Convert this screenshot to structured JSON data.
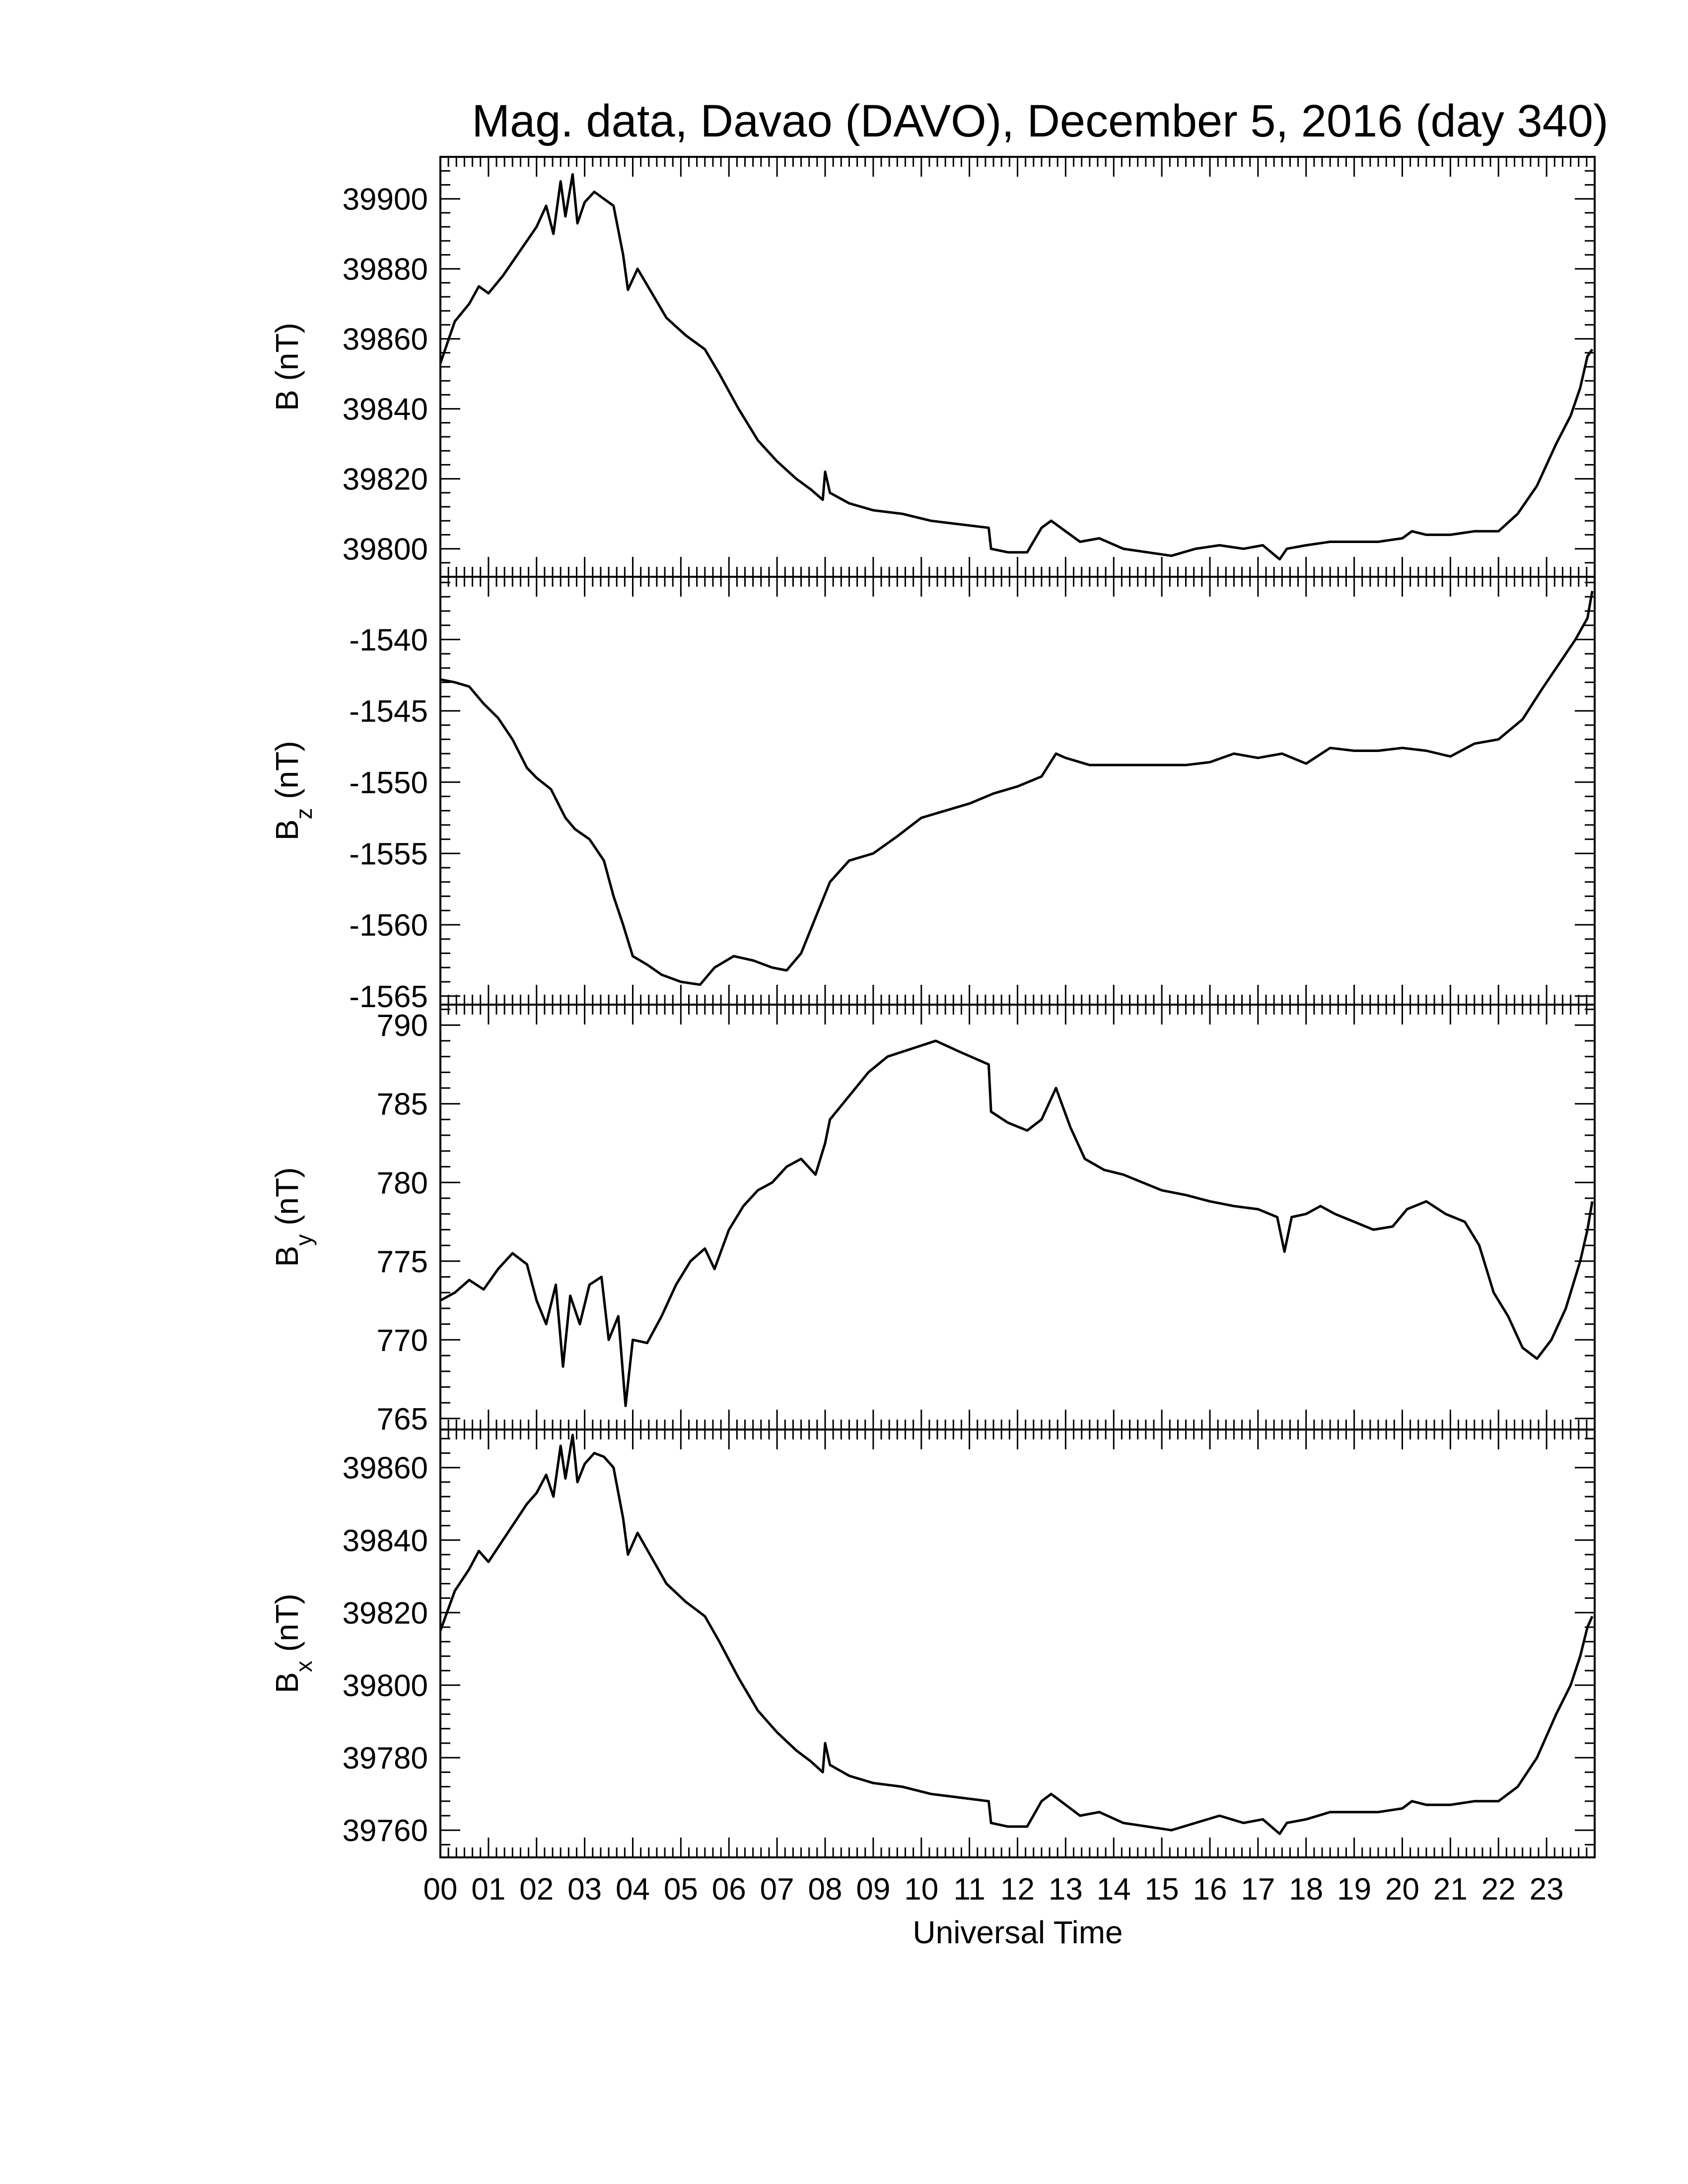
{
  "title": "Mag. data, Davao (DAVO), December 5, 2016 (day 340)",
  "line_color": "#000000",
  "xaxis": {
    "label": "Universal Time",
    "ticks": [
      "00",
      "01",
      "02",
      "03",
      "04",
      "05",
      "06",
      "07",
      "08",
      "09",
      "10",
      "11",
      "12",
      "13",
      "14",
      "15",
      "16",
      "17",
      "18",
      "19",
      "20",
      "21",
      "22",
      "23"
    ],
    "range": [
      0,
      24
    ],
    "unit": "hours"
  },
  "chart_data": [
    {
      "type": "line",
      "id": "B",
      "ylabel": "B (nT)",
      "ylabel_main": "B",
      "ylabel_sub": "",
      "ylabel_unit": "(nT)",
      "ylim": [
        39792,
        39912
      ],
      "yticks": [
        39800,
        39820,
        39840,
        39860,
        39880,
        39900
      ],
      "points": [
        [
          0,
          39853
        ],
        [
          0.3,
          39865
        ],
        [
          0.6,
          39870
        ],
        [
          0.8,
          39875
        ],
        [
          1.0,
          39873
        ],
        [
          1.3,
          39878
        ],
        [
          1.6,
          39884
        ],
        [
          1.8,
          39888
        ],
        [
          2.0,
          39892
        ],
        [
          2.2,
          39898
        ],
        [
          2.35,
          39890
        ],
        [
          2.5,
          39905
        ],
        [
          2.6,
          39895
        ],
        [
          2.75,
          39907
        ],
        [
          2.85,
          39893
        ],
        [
          3.0,
          39899
        ],
        [
          3.2,
          39902
        ],
        [
          3.4,
          39900
        ],
        [
          3.6,
          39898
        ],
        [
          3.8,
          39884
        ],
        [
          3.9,
          39874
        ],
        [
          4.1,
          39880
        ],
        [
          4.4,
          39873
        ],
        [
          4.7,
          39866
        ],
        [
          5.1,
          39861
        ],
        [
          5.5,
          39857
        ],
        [
          5.8,
          39850
        ],
        [
          6.2,
          39840
        ],
        [
          6.6,
          39831
        ],
        [
          7.0,
          39825
        ],
        [
          7.4,
          39820
        ],
        [
          7.7,
          39817
        ],
        [
          7.95,
          39814
        ],
        [
          8.0,
          39822
        ],
        [
          8.1,
          39816
        ],
        [
          8.5,
          39813
        ],
        [
          9.0,
          39811
        ],
        [
          9.6,
          39810
        ],
        [
          10.2,
          39808
        ],
        [
          10.8,
          39807
        ],
        [
          11.4,
          39806
        ],
        [
          11.45,
          39800
        ],
        [
          11.8,
          39799
        ],
        [
          12.2,
          39799
        ],
        [
          12.5,
          39806
        ],
        [
          12.7,
          39808
        ],
        [
          12.9,
          39806
        ],
        [
          13.3,
          39802
        ],
        [
          13.7,
          39803
        ],
        [
          14.2,
          39800
        ],
        [
          14.7,
          39799
        ],
        [
          15.2,
          39798
        ],
        [
          15.7,
          39800
        ],
        [
          16.2,
          39801
        ],
        [
          16.7,
          39800
        ],
        [
          17.1,
          39801
        ],
        [
          17.45,
          39797
        ],
        [
          17.6,
          39800
        ],
        [
          18.0,
          39801
        ],
        [
          18.5,
          39802
        ],
        [
          19.0,
          39802
        ],
        [
          19.5,
          39802
        ],
        [
          20.0,
          39803
        ],
        [
          20.2,
          39805
        ],
        [
          20.5,
          39804
        ],
        [
          21.0,
          39804
        ],
        [
          21.5,
          39805
        ],
        [
          22.0,
          39805
        ],
        [
          22.4,
          39810
        ],
        [
          22.8,
          39818
        ],
        [
          23.2,
          39830
        ],
        [
          23.5,
          39838
        ],
        [
          23.7,
          39846
        ],
        [
          23.85,
          39855
        ],
        [
          23.95,
          39857
        ]
      ]
    },
    {
      "type": "line",
      "id": "Bz",
      "ylabel": "Bz (nT)",
      "ylabel_main": "B",
      "ylabel_sub": "z",
      "ylabel_unit": "(nT)",
      "ylim": [
        -1565.6,
        -1535.6
      ],
      "yticks": [
        -1540,
        -1545,
        -1550,
        -1555,
        -1560,
        -1565
      ],
      "points": [
        [
          0,
          -1542.8
        ],
        [
          0.3,
          -1543.0
        ],
        [
          0.6,
          -1543.3
        ],
        [
          0.9,
          -1544.5
        ],
        [
          1.2,
          -1545.5
        ],
        [
          1.5,
          -1547.0
        ],
        [
          1.8,
          -1549.0
        ],
        [
          2.0,
          -1549.7
        ],
        [
          2.3,
          -1550.5
        ],
        [
          2.6,
          -1552.5
        ],
        [
          2.8,
          -1553.3
        ],
        [
          3.1,
          -1554.0
        ],
        [
          3.4,
          -1555.5
        ],
        [
          3.6,
          -1558.0
        ],
        [
          3.8,
          -1560.0
        ],
        [
          4.0,
          -1562.2
        ],
        [
          4.3,
          -1562.8
        ],
        [
          4.6,
          -1563.5
        ],
        [
          5.0,
          -1564.0
        ],
        [
          5.4,
          -1564.2
        ],
        [
          5.7,
          -1563.0
        ],
        [
          6.1,
          -1562.2
        ],
        [
          6.5,
          -1562.5
        ],
        [
          6.9,
          -1563.0
        ],
        [
          7.2,
          -1563.2
        ],
        [
          7.5,
          -1562.0
        ],
        [
          7.8,
          -1559.5
        ],
        [
          8.1,
          -1557.0
        ],
        [
          8.5,
          -1555.5
        ],
        [
          9.0,
          -1555.0
        ],
        [
          9.5,
          -1553.8
        ],
        [
          10.0,
          -1552.5
        ],
        [
          10.5,
          -1552.0
        ],
        [
          11.0,
          -1551.5
        ],
        [
          11.5,
          -1550.8
        ],
        [
          12.0,
          -1550.3
        ],
        [
          12.5,
          -1549.6
        ],
        [
          12.8,
          -1548.0
        ],
        [
          13.0,
          -1548.3
        ],
        [
          13.5,
          -1548.8
        ],
        [
          14.5,
          -1548.8
        ],
        [
          15.5,
          -1548.8
        ],
        [
          16.0,
          -1548.6
        ],
        [
          16.5,
          -1548.0
        ],
        [
          17.0,
          -1548.3
        ],
        [
          17.5,
          -1548.0
        ],
        [
          18.0,
          -1548.7
        ],
        [
          18.5,
          -1547.6
        ],
        [
          19.0,
          -1547.8
        ],
        [
          19.5,
          -1547.8
        ],
        [
          20.0,
          -1547.6
        ],
        [
          20.5,
          -1547.8
        ],
        [
          21.0,
          -1548.2
        ],
        [
          21.5,
          -1547.3
        ],
        [
          22.0,
          -1547.0
        ],
        [
          22.5,
          -1545.6
        ],
        [
          22.9,
          -1543.5
        ],
        [
          23.3,
          -1541.5
        ],
        [
          23.6,
          -1540.0
        ],
        [
          23.85,
          -1538.5
        ],
        [
          23.95,
          -1536.6
        ]
      ]
    },
    {
      "type": "line",
      "id": "By",
      "ylabel": "By (nT)",
      "ylabel_main": "B",
      "ylabel_sub": "y",
      "ylabel_unit": "(nT)",
      "ylim": [
        764.3,
        791.3
      ],
      "yticks": [
        765,
        770,
        775,
        780,
        785,
        790
      ],
      "points": [
        [
          0,
          772.5
        ],
        [
          0.3,
          773.0
        ],
        [
          0.6,
          773.8
        ],
        [
          0.9,
          773.2
        ],
        [
          1.2,
          774.5
        ],
        [
          1.5,
          775.5
        ],
        [
          1.8,
          774.8
        ],
        [
          2.0,
          772.5
        ],
        [
          2.2,
          771.0
        ],
        [
          2.4,
          773.5
        ],
        [
          2.55,
          768.3
        ],
        [
          2.7,
          772.8
        ],
        [
          2.9,
          771.0
        ],
        [
          3.1,
          773.5
        ],
        [
          3.35,
          774.0
        ],
        [
          3.5,
          770.0
        ],
        [
          3.7,
          771.5
        ],
        [
          3.85,
          765.8
        ],
        [
          4.0,
          770.0
        ],
        [
          4.3,
          769.8
        ],
        [
          4.6,
          771.5
        ],
        [
          4.9,
          773.5
        ],
        [
          5.2,
          775.0
        ],
        [
          5.5,
          775.8
        ],
        [
          5.7,
          774.5
        ],
        [
          6.0,
          777.0
        ],
        [
          6.3,
          778.5
        ],
        [
          6.6,
          779.5
        ],
        [
          6.9,
          780.0
        ],
        [
          7.2,
          781.0
        ],
        [
          7.5,
          781.5
        ],
        [
          7.8,
          780.5
        ],
        [
          8.0,
          782.5
        ],
        [
          8.1,
          784.0
        ],
        [
          8.5,
          785.5
        ],
        [
          8.9,
          787.0
        ],
        [
          9.3,
          788.0
        ],
        [
          9.8,
          788.5
        ],
        [
          10.3,
          789.0
        ],
        [
          10.8,
          788.3
        ],
        [
          11.4,
          787.5
        ],
        [
          11.45,
          784.5
        ],
        [
          11.8,
          783.8
        ],
        [
          12.2,
          783.3
        ],
        [
          12.5,
          784.0
        ],
        [
          12.8,
          786.0
        ],
        [
          13.1,
          783.5
        ],
        [
          13.4,
          781.5
        ],
        [
          13.8,
          780.8
        ],
        [
          14.2,
          780.5
        ],
        [
          14.6,
          780.0
        ],
        [
          15.0,
          779.5
        ],
        [
          15.5,
          779.2
        ],
        [
          16.0,
          778.8
        ],
        [
          16.5,
          778.5
        ],
        [
          17.0,
          778.3
        ],
        [
          17.4,
          777.8
        ],
        [
          17.55,
          775.6
        ],
        [
          17.7,
          777.8
        ],
        [
          18.0,
          778.0
        ],
        [
          18.3,
          778.5
        ],
        [
          18.6,
          778.0
        ],
        [
          19.0,
          777.5
        ],
        [
          19.4,
          777.0
        ],
        [
          19.8,
          777.2
        ],
        [
          20.1,
          778.3
        ],
        [
          20.5,
          778.8
        ],
        [
          20.9,
          778.0
        ],
        [
          21.3,
          777.5
        ],
        [
          21.6,
          776.0
        ],
        [
          21.9,
          773.0
        ],
        [
          22.2,
          771.5
        ],
        [
          22.5,
          769.5
        ],
        [
          22.8,
          768.8
        ],
        [
          23.1,
          770.0
        ],
        [
          23.4,
          772.0
        ],
        [
          23.7,
          775.0
        ],
        [
          23.85,
          777.0
        ],
        [
          23.95,
          778.8
        ]
      ]
    },
    {
      "type": "line",
      "id": "Bx",
      "ylabel": "Bx (nT)",
      "ylabel_main": "B",
      "ylabel_sub": "x",
      "ylabel_unit": "(nT)",
      "ylim": [
        39752.5,
        39870.5
      ],
      "yticks": [
        39760,
        39780,
        39800,
        39820,
        39840,
        39860
      ],
      "points": [
        [
          0,
          39815
        ],
        [
          0.3,
          39826
        ],
        [
          0.6,
          39832
        ],
        [
          0.8,
          39837
        ],
        [
          1.0,
          39834
        ],
        [
          1.3,
          39840
        ],
        [
          1.6,
          39846
        ],
        [
          1.8,
          39850
        ],
        [
          2.0,
          39853
        ],
        [
          2.2,
          39858
        ],
        [
          2.35,
          39852
        ],
        [
          2.5,
          39866
        ],
        [
          2.6,
          39857
        ],
        [
          2.75,
          39869
        ],
        [
          2.85,
          39856
        ],
        [
          3.0,
          39861
        ],
        [
          3.2,
          39864
        ],
        [
          3.4,
          39863
        ],
        [
          3.6,
          39860
        ],
        [
          3.8,
          39846
        ],
        [
          3.9,
          39836
        ],
        [
          4.1,
          39842
        ],
        [
          4.4,
          39835
        ],
        [
          4.7,
          39828
        ],
        [
          5.1,
          39823
        ],
        [
          5.5,
          39819
        ],
        [
          5.8,
          39812
        ],
        [
          6.2,
          39802
        ],
        [
          6.6,
          39793
        ],
        [
          7.0,
          39787
        ],
        [
          7.4,
          39782
        ],
        [
          7.7,
          39779
        ],
        [
          7.95,
          39776
        ],
        [
          8.0,
          39784
        ],
        [
          8.1,
          39778
        ],
        [
          8.5,
          39775
        ],
        [
          9.0,
          39773
        ],
        [
          9.6,
          39772
        ],
        [
          10.2,
          39770
        ],
        [
          10.8,
          39769
        ],
        [
          11.4,
          39768
        ],
        [
          11.45,
          39762
        ],
        [
          11.8,
          39761
        ],
        [
          12.2,
          39761
        ],
        [
          12.5,
          39768
        ],
        [
          12.7,
          39770
        ],
        [
          12.9,
          39768
        ],
        [
          13.3,
          39764
        ],
        [
          13.7,
          39765
        ],
        [
          14.2,
          39762
        ],
        [
          14.7,
          39761
        ],
        [
          15.2,
          39760
        ],
        [
          15.7,
          39762
        ],
        [
          16.2,
          39764
        ],
        [
          16.7,
          39762
        ],
        [
          17.1,
          39763
        ],
        [
          17.45,
          39759
        ],
        [
          17.6,
          39762
        ],
        [
          18.0,
          39763
        ],
        [
          18.5,
          39765
        ],
        [
          19.0,
          39765
        ],
        [
          19.5,
          39765
        ],
        [
          20.0,
          39766
        ],
        [
          20.2,
          39768
        ],
        [
          20.5,
          39767
        ],
        [
          21.0,
          39767
        ],
        [
          21.5,
          39768
        ],
        [
          22.0,
          39768
        ],
        [
          22.4,
          39772
        ],
        [
          22.8,
          39780
        ],
        [
          23.2,
          39792
        ],
        [
          23.5,
          39800
        ],
        [
          23.7,
          39808
        ],
        [
          23.85,
          39816
        ],
        [
          23.95,
          39819
        ]
      ]
    }
  ]
}
